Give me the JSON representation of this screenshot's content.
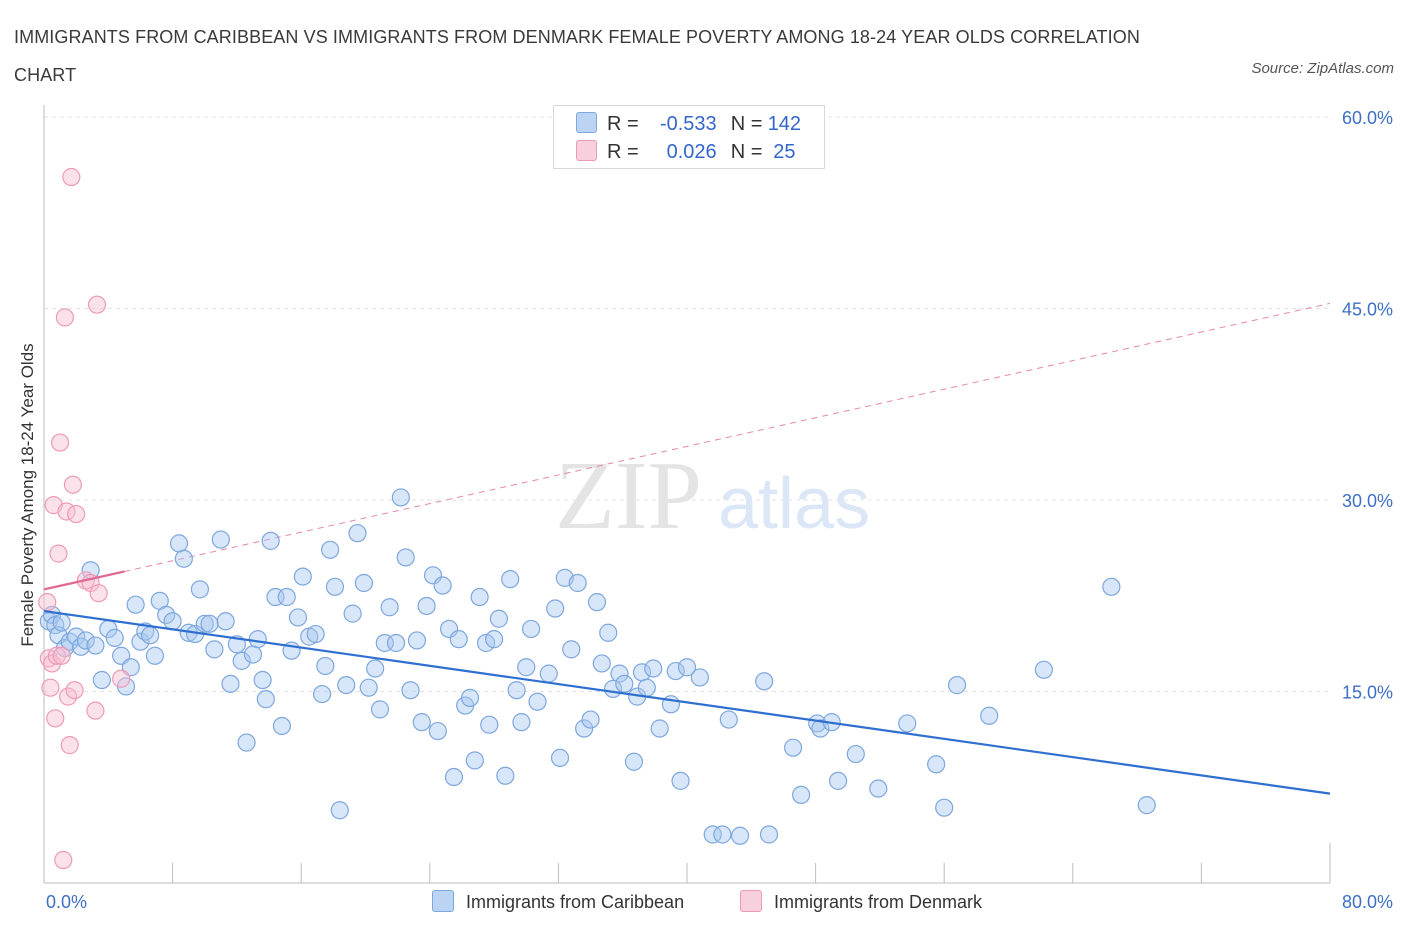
{
  "header": {
    "title": "IMMIGRANTS FROM CARIBBEAN VS IMMIGRANTS FROM DENMARK FEMALE POVERTY AMONG 18-24 YEAR OLDS CORRELATION CHART",
    "source": "Source: ZipAtlas.com"
  },
  "watermark": {
    "zip": "ZIP",
    "atlas": "atlas"
  },
  "legend": {
    "r_label": "R =",
    "n_label": "N =",
    "rows": [
      {
        "r": "-0.533",
        "n": "142",
        "color": "#a9c8f0"
      },
      {
        "r": "0.026",
        "n": "25",
        "color": "#f6bfd0"
      }
    ]
  },
  "colors": {
    "blue_point_fill": "rgba(167,199,240,0.45)",
    "blue_point_stroke": "#7ea7de",
    "blue_line": "#2f6fd0",
    "pink_point_fill": "rgba(246,190,208,0.45)",
    "pink_point_stroke": "#ee9ab7",
    "pink_line": "#e06a94",
    "axis_text": "#3d6fc6",
    "grid": "#e3e3e3"
  },
  "chart_data": {
    "type": "scatter",
    "title": "IMMIGRANTS FROM CARIBBEAN VS IMMIGRANTS FROM DENMARK FEMALE POVERTY AMONG 18-24 YEAR OLDS CORRELATION CHART",
    "xlabel": "",
    "ylabel": "Female Poverty Among 18-24 Year Olds",
    "xlim": [
      0,
      80
    ],
    "ylim": [
      0,
      60
    ],
    "x_tick_labels": [
      "0.0%",
      "80.0%"
    ],
    "y_tick_values": [
      15,
      30,
      45,
      60
    ],
    "y_tick_labels": [
      "15.0%",
      "30.0%",
      "45.0%",
      "60.0%"
    ],
    "grid": true,
    "legend_position": "top-center",
    "series": [
      {
        "name": "Immigrants from Caribbean",
        "R": -0.533,
        "N": 142,
        "trend": {
          "x": [
            0,
            80
          ],
          "y": [
            21.3,
            7.0
          ],
          "style": "solid"
        },
        "points": [
          [
            0.3,
            20.5
          ],
          [
            0.5,
            21.0
          ],
          [
            0.7,
            20.2
          ],
          [
            0.9,
            19.4
          ],
          [
            1.1,
            20.4
          ],
          [
            1.3,
            18.4
          ],
          [
            1.6,
            18.9
          ],
          [
            2.0,
            19.3
          ],
          [
            2.3,
            18.5
          ],
          [
            2.6,
            19.0
          ],
          [
            2.9,
            24.5
          ],
          [
            3.2,
            18.6
          ],
          [
            3.6,
            15.9
          ],
          [
            4.0,
            19.9
          ],
          [
            4.4,
            19.2
          ],
          [
            4.8,
            17.8
          ],
          [
            5.1,
            15.4
          ],
          [
            5.4,
            16.9
          ],
          [
            5.7,
            21.8
          ],
          [
            6.0,
            18.9
          ],
          [
            6.3,
            19.7
          ],
          [
            6.6,
            19.4
          ],
          [
            6.9,
            17.8
          ],
          [
            7.2,
            22.1
          ],
          [
            7.6,
            21.0
          ],
          [
            8.0,
            20.5
          ],
          [
            8.4,
            26.6
          ],
          [
            8.7,
            25.4
          ],
          [
            9.0,
            19.6
          ],
          [
            9.4,
            19.5
          ],
          [
            9.7,
            23.0
          ],
          [
            10.0,
            20.3
          ],
          [
            10.3,
            20.3
          ],
          [
            10.6,
            18.3
          ],
          [
            11.0,
            26.9
          ],
          [
            11.3,
            20.5
          ],
          [
            11.6,
            15.6
          ],
          [
            12.0,
            18.7
          ],
          [
            12.3,
            17.4
          ],
          [
            12.6,
            11.0
          ],
          [
            13.0,
            17.9
          ],
          [
            13.3,
            19.1
          ],
          [
            13.6,
            15.9
          ],
          [
            13.8,
            14.4
          ],
          [
            14.1,
            26.8
          ],
          [
            14.4,
            22.4
          ],
          [
            14.8,
            12.3
          ],
          [
            15.1,
            22.4
          ],
          [
            15.4,
            18.2
          ],
          [
            15.8,
            20.8
          ],
          [
            16.1,
            24.0
          ],
          [
            16.5,
            19.3
          ],
          [
            16.9,
            19.5
          ],
          [
            17.3,
            14.8
          ],
          [
            17.5,
            17.0
          ],
          [
            17.8,
            26.1
          ],
          [
            18.1,
            23.2
          ],
          [
            18.4,
            5.7
          ],
          [
            18.8,
            15.5
          ],
          [
            19.2,
            21.1
          ],
          [
            19.5,
            27.4
          ],
          [
            19.9,
            23.5
          ],
          [
            20.2,
            15.3
          ],
          [
            20.6,
            16.8
          ],
          [
            20.9,
            13.6
          ],
          [
            21.2,
            18.8
          ],
          [
            21.5,
            21.6
          ],
          [
            21.9,
            18.8
          ],
          [
            22.2,
            30.2
          ],
          [
            22.5,
            25.5
          ],
          [
            22.8,
            15.1
          ],
          [
            23.2,
            19.0
          ],
          [
            23.5,
            12.6
          ],
          [
            23.8,
            21.7
          ],
          [
            24.2,
            24.1
          ],
          [
            24.5,
            11.9
          ],
          [
            24.8,
            23.3
          ],
          [
            25.2,
            19.9
          ],
          [
            25.5,
            8.3
          ],
          [
            25.8,
            19.1
          ],
          [
            26.2,
            13.9
          ],
          [
            26.5,
            14.5
          ],
          [
            26.8,
            9.6
          ],
          [
            27.1,
            22.4
          ],
          [
            27.5,
            18.8
          ],
          [
            27.7,
            12.4
          ],
          [
            28.0,
            19.1
          ],
          [
            28.3,
            20.7
          ],
          [
            28.7,
            8.4
          ],
          [
            29.0,
            23.8
          ],
          [
            29.4,
            15.1
          ],
          [
            29.7,
            12.6
          ],
          [
            30.0,
            16.9
          ],
          [
            30.3,
            19.9
          ],
          [
            30.7,
            14.2
          ],
          [
            31.4,
            16.4
          ],
          [
            31.8,
            21.5
          ],
          [
            32.1,
            9.8
          ],
          [
            32.4,
            23.9
          ],
          [
            32.8,
            18.3
          ],
          [
            33.2,
            23.5
          ],
          [
            33.6,
            12.1
          ],
          [
            34.0,
            12.8
          ],
          [
            34.4,
            22.0
          ],
          [
            34.7,
            17.2
          ],
          [
            35.1,
            19.6
          ],
          [
            35.4,
            15.2
          ],
          [
            35.8,
            16.4
          ],
          [
            36.1,
            15.6
          ],
          [
            36.7,
            9.5
          ],
          [
            36.9,
            14.6
          ],
          [
            37.2,
            16.5
          ],
          [
            37.5,
            15.3
          ],
          [
            37.9,
            16.8
          ],
          [
            38.3,
            12.1
          ],
          [
            39.0,
            14.0
          ],
          [
            39.3,
            16.6
          ],
          [
            39.6,
            8.0
          ],
          [
            40.0,
            16.9
          ],
          [
            40.8,
            16.1
          ],
          [
            41.6,
            3.8
          ],
          [
            42.2,
            3.8
          ],
          [
            42.6,
            12.8
          ],
          [
            43.3,
            3.7
          ],
          [
            44.8,
            15.8
          ],
          [
            45.1,
            3.8
          ],
          [
            46.6,
            10.6
          ],
          [
            47.1,
            6.9
          ],
          [
            48.1,
            12.5
          ],
          [
            48.3,
            12.1
          ],
          [
            49.0,
            12.6
          ],
          [
            49.4,
            8.0
          ],
          [
            50.5,
            10.1
          ],
          [
            51.9,
            7.4
          ],
          [
            53.7,
            12.5
          ],
          [
            55.5,
            9.3
          ],
          [
            56.0,
            5.9
          ],
          [
            56.8,
            15.5
          ],
          [
            58.8,
            13.1
          ],
          [
            62.2,
            16.7
          ],
          [
            66.4,
            23.2
          ],
          [
            68.6,
            6.1
          ]
        ]
      },
      {
        "name": "Immigrants from Denmark",
        "R": 0.026,
        "N": 25,
        "trend": {
          "x": [
            0,
            5
          ],
          "y": [
            23.0,
            24.4
          ],
          "style": "solid"
        },
        "trend_extended": {
          "x": [
            5,
            80
          ],
          "y": [
            24.4,
            45.4
          ],
          "style": "dashed"
        },
        "points": [
          [
            0.2,
            22.0
          ],
          [
            0.3,
            17.6
          ],
          [
            0.4,
            15.3
          ],
          [
            0.5,
            17.2
          ],
          [
            0.6,
            29.6
          ],
          [
            0.7,
            12.9
          ],
          [
            0.8,
            17.8
          ],
          [
            0.9,
            25.8
          ],
          [
            1.0,
            34.5
          ],
          [
            1.1,
            17.8
          ],
          [
            1.2,
            1.8
          ],
          [
            1.3,
            44.3
          ],
          [
            1.4,
            29.1
          ],
          [
            1.5,
            14.6
          ],
          [
            1.6,
            10.8
          ],
          [
            1.7,
            55.3
          ],
          [
            1.8,
            31.2
          ],
          [
            1.9,
            15.1
          ],
          [
            2.0,
            28.9
          ],
          [
            2.6,
            23.7
          ],
          [
            2.9,
            23.5
          ],
          [
            3.2,
            13.5
          ],
          [
            3.3,
            45.3
          ],
          [
            3.4,
            22.7
          ],
          [
            4.8,
            16.0
          ]
        ]
      }
    ]
  }
}
